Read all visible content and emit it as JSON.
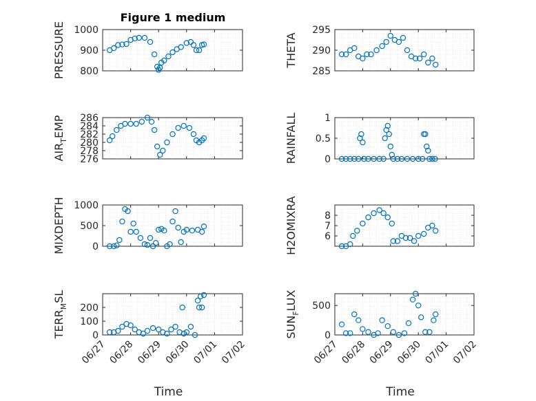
{
  "figure": {
    "title": "Figure 1 medium"
  },
  "colors": {
    "marker": "#0072BD",
    "axis": "#262626",
    "grid": "#d4d4d4"
  },
  "chart_data": [
    {
      "type": "scatter",
      "name": "pressure",
      "title": "Figure 1 medium",
      "ylabel": "PRESSURE",
      "ylabel_sub": "",
      "ylabel_post": "",
      "xlabel": "",
      "ylim": [
        800,
        1000
      ],
      "xlim": [
        0,
        5
      ],
      "yticks": [
        800,
        900,
        1000
      ],
      "ytick_labels": [
        "800",
        "900",
        "1000"
      ],
      "xticks": [
        0,
        1,
        2,
        3,
        4,
        5
      ],
      "xtick_labels": [],
      "x": [
        0.25,
        0.4,
        0.55,
        0.7,
        0.85,
        1.0,
        1.15,
        1.3,
        1.5,
        1.7,
        1.85,
        1.95,
        2.0,
        2.05,
        2.1,
        2.2,
        2.35,
        2.5,
        2.65,
        2.8,
        3.0,
        3.15,
        3.25,
        3.35,
        3.45,
        3.55,
        3.62
      ],
      "y": [
        900,
        910,
        925,
        928,
        930,
        950,
        957,
        960,
        960,
        940,
        880,
        820,
        805,
        815,
        840,
        850,
        870,
        890,
        905,
        915,
        935,
        940,
        925,
        900,
        900,
        925,
        928
      ]
    },
    {
      "type": "scatter",
      "name": "theta",
      "title": "",
      "ylabel": "THETA",
      "ylabel_sub": "",
      "ylabel_post": "",
      "xlabel": "",
      "ylim": [
        285,
        295
      ],
      "xlim": [
        0,
        5
      ],
      "yticks": [
        285,
        290,
        295
      ],
      "ytick_labels": [
        "285",
        "290",
        "295"
      ],
      "xticks": [
        0,
        1,
        2,
        3,
        4,
        5
      ],
      "xtick_labels": [],
      "x": [
        0.25,
        0.4,
        0.55,
        0.7,
        0.85,
        1.0,
        1.15,
        1.3,
        1.5,
        1.7,
        1.85,
        2.0,
        2.15,
        2.3,
        2.45,
        2.6,
        2.75,
        2.9,
        3.05,
        3.2,
        3.35,
        3.5,
        3.62
      ],
      "y": [
        289,
        289,
        290,
        290.5,
        288.5,
        288,
        289,
        289,
        290,
        291,
        292,
        293.5,
        292.5,
        292,
        293,
        290,
        288.5,
        288,
        288,
        289,
        287,
        288,
        286.5
      ]
    },
    {
      "type": "scatter",
      "name": "air-temp",
      "title": "",
      "ylabel": "AIR",
      "ylabel_sub": "T",
      "ylabel_post": "EMP",
      "xlabel": "",
      "ylim": [
        276,
        286
      ],
      "xlim": [
        0,
        5
      ],
      "yticks": [
        276,
        278,
        280,
        282,
        284,
        286
      ],
      "ytick_labels": [
        "276",
        "278",
        "280",
        "282",
        "284",
        "286"
      ],
      "xticks": [
        0,
        1,
        2,
        3,
        4,
        5
      ],
      "xtick_labels": [],
      "x": [
        0.25,
        0.35,
        0.5,
        0.65,
        0.8,
        1.0,
        1.2,
        1.4,
        1.6,
        1.75,
        1.85,
        1.95,
        2.05,
        2.15,
        2.3,
        2.5,
        2.7,
        2.9,
        3.1,
        3.25,
        3.35,
        3.45,
        3.55,
        3.62
      ],
      "y": [
        280.5,
        281.5,
        283,
        284,
        284.5,
        284.5,
        284.5,
        285,
        286,
        285,
        283,
        279,
        277,
        278,
        280,
        282,
        283.5,
        284,
        283.5,
        282,
        280.5,
        280,
        280.5,
        281
      ]
    },
    {
      "type": "scatter",
      "name": "rainfall",
      "title": "",
      "ylabel": "RAINFALL",
      "ylabel_sub": "",
      "ylabel_post": "",
      "xlabel": "",
      "ylim": [
        0,
        1
      ],
      "xlim": [
        0,
        5
      ],
      "yticks": [
        0,
        0.5,
        1
      ],
      "ytick_labels": [
        "0",
        "0.5",
        "1"
      ],
      "xticks": [
        0,
        1,
        2,
        3,
        4,
        5
      ],
      "xtick_labels": [],
      "x": [
        0.25,
        0.4,
        0.55,
        0.7,
        0.85,
        0.9,
        0.95,
        1.0,
        1.05,
        1.2,
        1.4,
        1.6,
        1.75,
        1.8,
        1.85,
        1.9,
        1.95,
        2.0,
        2.05,
        2.1,
        2.25,
        2.4,
        2.6,
        2.8,
        3.0,
        3.15,
        3.2,
        3.25,
        3.3,
        3.35,
        3.4,
        3.5,
        3.6
      ],
      "y": [
        0,
        0,
        0,
        0,
        0,
        0.5,
        0.6,
        0.4,
        0,
        0,
        0,
        0,
        0,
        0.5,
        0.7,
        0.8,
        0.6,
        0.3,
        0.1,
        0,
        0,
        0,
        0,
        0,
        0,
        0,
        0.6,
        0.6,
        0.3,
        0.2,
        0,
        0,
        0
      ]
    },
    {
      "type": "scatter",
      "name": "mixdepth",
      "title": "",
      "ylabel": "MIXDEPTH",
      "ylabel_sub": "",
      "ylabel_post": "",
      "xlabel": "",
      "ylim": [
        0,
        1000
      ],
      "xlim": [
        0,
        5
      ],
      "yticks": [
        0,
        500,
        1000
      ],
      "ytick_labels": [
        "0",
        "500",
        "1000"
      ],
      "xticks": [
        0,
        1,
        2,
        3,
        4,
        5
      ],
      "xtick_labels": [],
      "x": [
        0.25,
        0.4,
        0.5,
        0.6,
        0.7,
        0.8,
        0.9,
        1.0,
        1.1,
        1.2,
        1.35,
        1.5,
        1.6,
        1.7,
        1.8,
        1.9,
        2.0,
        2.1,
        2.2,
        2.3,
        2.4,
        2.5,
        2.6,
        2.7,
        2.8,
        2.9,
        3.0,
        3.2,
        3.4,
        3.55,
        3.62
      ],
      "y": [
        0,
        0,
        20,
        150,
        600,
        900,
        850,
        350,
        550,
        350,
        200,
        50,
        30,
        200,
        0,
        80,
        400,
        420,
        380,
        0,
        50,
        600,
        850,
        450,
        100,
        350,
        400,
        380,
        400,
        350,
        480
      ]
    },
    {
      "type": "scatter",
      "name": "h2omixra",
      "title": "",
      "ylabel": "H2OMIXRA",
      "ylabel_sub": "",
      "ylabel_post": "",
      "xlabel": "",
      "ylim": [
        5,
        9
      ],
      "xlim": [
        0,
        5
      ],
      "yticks": [
        6,
        7,
        8
      ],
      "ytick_labels": [
        "6",
        "7",
        "8"
      ],
      "xticks": [
        0,
        1,
        2,
        3,
        4,
        5
      ],
      "xtick_labels": [],
      "x": [
        0.25,
        0.4,
        0.55,
        0.65,
        0.8,
        1.0,
        1.2,
        1.4,
        1.6,
        1.75,
        1.9,
        2.05,
        2.1,
        2.25,
        2.4,
        2.55,
        2.7,
        2.85,
        3.0,
        3.2,
        3.35,
        3.5,
        3.62
      ],
      "y": [
        5,
        5,
        5.2,
        6,
        6.5,
        7.2,
        7.8,
        8.2,
        8.5,
        8.2,
        7.8,
        7.2,
        5.5,
        5.5,
        6,
        5.8,
        5.8,
        5.5,
        6,
        6.2,
        6.8,
        7,
        6.5
      ]
    },
    {
      "type": "scatter",
      "name": "terrain-msl",
      "title": "",
      "ylabel": "TERR",
      "ylabel_sub": "M",
      "ylabel_post": "SL",
      "xlabel": "Time",
      "ylim": [
        0,
        300
      ],
      "xlim": [
        0,
        5
      ],
      "yticks": [
        0,
        100,
        200
      ],
      "ytick_labels": [
        "0",
        "100",
        "200"
      ],
      "xticks": [
        0,
        1,
        2,
        3,
        4,
        5
      ],
      "xtick_labels": [
        "06/27",
        "06/28",
        "06/29",
        "06/30",
        "07/01",
        "07/02"
      ],
      "x": [
        0.25,
        0.4,
        0.55,
        0.7,
        0.85,
        1.0,
        1.15,
        1.3,
        1.45,
        1.6,
        1.8,
        2.0,
        2.15,
        2.3,
        2.45,
        2.6,
        2.75,
        2.85,
        2.9,
        3.0,
        3.15,
        3.3,
        3.4,
        3.45,
        3.5,
        3.55,
        3.62
      ],
      "y": [
        20,
        20,
        30,
        60,
        80,
        70,
        40,
        20,
        10,
        30,
        50,
        40,
        20,
        10,
        40,
        60,
        20,
        200,
        10,
        20,
        60,
        0,
        250,
        200,
        280,
        200,
        290
      ]
    },
    {
      "type": "scatter",
      "name": "sun-flux",
      "title": "",
      "ylabel": "SUN",
      "ylabel_sub": "F",
      "ylabel_post": "LUX",
      "xlabel": "Time",
      "ylim": [
        0,
        700
      ],
      "xlim": [
        0,
        5
      ],
      "yticks": [
        0,
        500
      ],
      "ytick_labels": [
        "0",
        "500"
      ],
      "xticks": [
        0,
        1,
        2,
        3,
        4,
        5
      ],
      "xtick_labels": [
        "06/27",
        "06/28",
        "06/29",
        "06/30",
        "07/01",
        "07/02"
      ],
      "x": [
        0.25,
        0.4,
        0.55,
        0.7,
        0.85,
        1.0,
        1.2,
        1.4,
        1.55,
        1.7,
        1.9,
        2.1,
        2.3,
        2.5,
        2.65,
        2.8,
        2.9,
        3.0,
        3.1,
        3.25,
        3.4,
        3.55,
        3.62
      ],
      "y": [
        180,
        30,
        30,
        350,
        250,
        100,
        50,
        0,
        30,
        250,
        150,
        50,
        0,
        30,
        200,
        600,
        700,
        500,
        300,
        50,
        50,
        250,
        350
      ]
    }
  ]
}
